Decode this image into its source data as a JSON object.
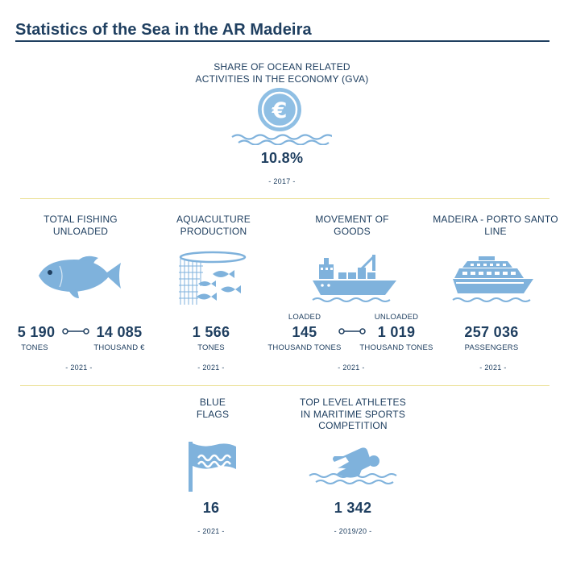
{
  "title": "Statistics of the Sea in the AR Madeira",
  "colors": {
    "navy": "#1f3f60",
    "icon_blue": "#7fb2dc",
    "separator": "#eadf8f"
  },
  "gva": {
    "label_line1": "SHARE OF OCEAN RELATED",
    "label_line2": "ACTIVITIES IN THE ECONOMY (GVA)",
    "icon": "euro-coin-waves-icon",
    "value": "10.8%",
    "year": "- 2017 -"
  },
  "fishing": {
    "label_line1": "TOTAL FISHING",
    "label_line2": "UNLOADED",
    "icon": "fish-icon",
    "value1": "5 190",
    "unit1": "TONES",
    "value2": "14 085",
    "unit2": "THOUSAND €",
    "year": "- 2021 -"
  },
  "aquaculture": {
    "label_line1": "AQUACULTURE",
    "label_line2": "PRODUCTION",
    "icon": "fish-net-icon",
    "value": "1 566",
    "unit": "TONES",
    "year": "- 2021 -"
  },
  "goods": {
    "label_line1": "MOVEMENT OF",
    "label_line2": "GOODS",
    "icon": "cargo-ship-icon",
    "loaded_label": "LOADED",
    "loaded_value": "145",
    "loaded_unit": "THOUSAND TONES",
    "unloaded_label": "UNLOADED",
    "unloaded_value": "1 019",
    "unloaded_unit": "THOUSAND TONES",
    "year": "- 2021 -"
  },
  "line": {
    "label_line1": "MADEIRA - PORTO SANTO",
    "label_line2": "LINE",
    "icon": "ferry-icon",
    "value": "257 036",
    "unit": "PASSENGERS",
    "year": "- 2021 -"
  },
  "flags": {
    "label_line1": "BLUE",
    "label_line2": "FLAGS",
    "icon": "blue-flag-icon",
    "value": "16",
    "year": "- 2021 -"
  },
  "athletes": {
    "label_line1": "TOP LEVEL ATHLETES",
    "label_line2": "IN MARITIME SPORTS",
    "label_line3": "COMPETITION",
    "icon": "swimmer-icon",
    "value": "1 342",
    "year": "- 2019/20 -"
  }
}
